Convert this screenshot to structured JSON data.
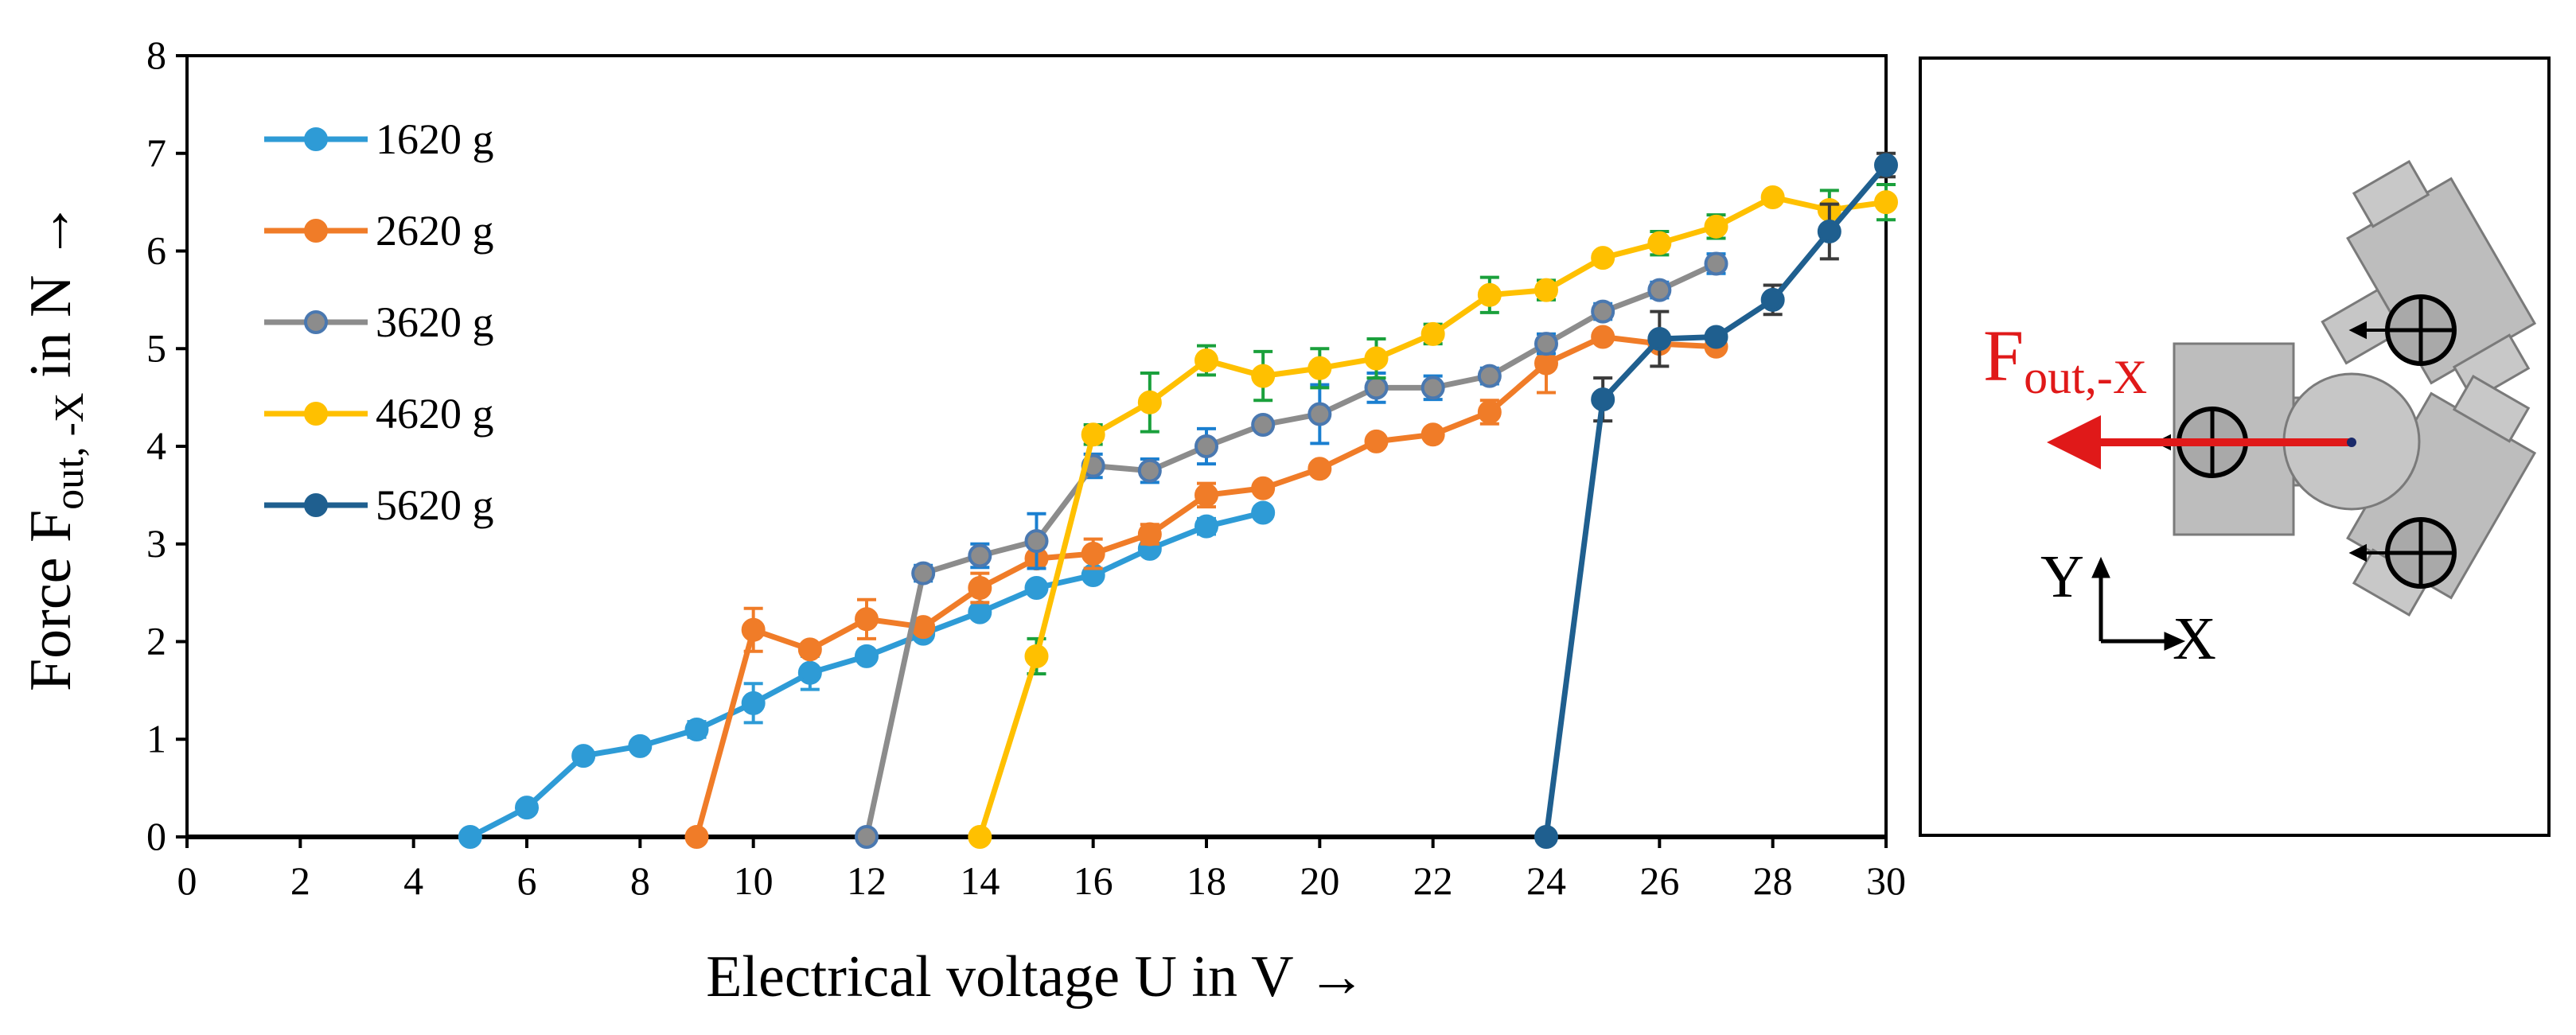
{
  "chart_data": {
    "type": "line",
    "xlabel": "Electrical voltage U in V →",
    "ylabel_parts": {
      "main": "Force F",
      "sub": "out, -X",
      "tail": " in N →"
    },
    "xlim": [
      0,
      30
    ],
    "ylim": [
      0,
      8
    ],
    "xticks": [
      0,
      2,
      4,
      6,
      8,
      10,
      12,
      14,
      16,
      18,
      20,
      22,
      24,
      26,
      28,
      30
    ],
    "yticks": [
      0,
      1,
      2,
      3,
      4,
      5,
      6,
      7,
      8
    ],
    "grid": false,
    "legend_position": "top-left",
    "series": [
      {
        "name": "1620 g",
        "color": "#2e9bd6",
        "marker_edge": "#2e9bd6",
        "error_color": "#2e9bd6",
        "x": [
          5,
          6,
          7,
          8,
          9,
          10,
          11,
          12,
          13,
          14,
          15,
          16,
          17,
          18,
          19
        ],
        "values": [
          0,
          0.3,
          0.83,
          0.93,
          1.1,
          1.37,
          1.68,
          1.85,
          2.08,
          2.3,
          2.55,
          2.68,
          2.95,
          3.18,
          3.32
        ],
        "errors": [
          0,
          0,
          0,
          0,
          0.08,
          0.2,
          0.17,
          0,
          0.05,
          0,
          0,
          0,
          0,
          0.08,
          0.06
        ]
      },
      {
        "name": "2620 g",
        "color": "#f07c28",
        "marker_edge": "#f07c28",
        "error_color": "#f07c28",
        "x": [
          9,
          10,
          11,
          12,
          13,
          14,
          15,
          16,
          17,
          18,
          19,
          20,
          21,
          22,
          23,
          24,
          25,
          26,
          27
        ],
        "values": [
          0,
          2.12,
          1.92,
          2.23,
          2.15,
          2.55,
          2.85,
          2.9,
          3.1,
          3.5,
          3.57,
          3.77,
          4.05,
          4.12,
          4.35,
          4.85,
          5.12,
          5.05,
          5.02
        ],
        "errors": [
          0,
          0.22,
          0,
          0.2,
          0,
          0.15,
          0,
          0.15,
          0.1,
          0.12,
          0,
          0,
          0,
          0,
          0.12,
          0.3,
          0,
          0,
          0
        ]
      },
      {
        "name": "3620 g",
        "color": "#8c8c8c",
        "marker_edge": "#4a78b0",
        "error_color": "#1a7fd0",
        "x": [
          12,
          13,
          14,
          15,
          16,
          17,
          18,
          19,
          20,
          21,
          22,
          23,
          24,
          25,
          26,
          27
        ],
        "values": [
          0,
          2.7,
          2.88,
          3.03,
          3.8,
          3.75,
          4.0,
          4.22,
          4.33,
          4.6,
          4.6,
          4.72,
          5.05,
          5.38,
          5.6,
          5.87
        ],
        "errors": [
          0,
          0.08,
          0.12,
          0.28,
          0.12,
          0.12,
          0.18,
          0.05,
          0.3,
          0.15,
          0.12,
          0.08,
          0.1,
          0.08,
          0.08,
          0.1
        ]
      },
      {
        "name": "4620 g",
        "color": "#ffc000",
        "marker_edge": "#ffc000",
        "error_color": "#1aa03c",
        "x": [
          14,
          15,
          16,
          17,
          18,
          19,
          20,
          21,
          22,
          23,
          24,
          25,
          26,
          27,
          28,
          29,
          30
        ],
        "values": [
          0,
          1.85,
          4.12,
          4.45,
          4.88,
          4.72,
          4.8,
          4.9,
          5.15,
          5.55,
          5.6,
          5.93,
          6.08,
          6.25,
          6.55,
          6.42,
          6.5
        ],
        "errors": [
          0,
          0.18,
          0.1,
          0.3,
          0.15,
          0.25,
          0.2,
          0.2,
          0.1,
          0.18,
          0.1,
          0,
          0.12,
          0.12,
          0.05,
          0.2,
          0.18
        ]
      },
      {
        "name": "5620 g",
        "color": "#1f5f8f",
        "marker_edge": "#1f5f8f",
        "error_color": "#3a3a3a",
        "x": [
          24,
          25,
          26,
          27,
          28,
          29,
          30
        ],
        "values": [
          0,
          4.48,
          5.1,
          5.12,
          5.5,
          6.2,
          6.88
        ],
        "errors": [
          0,
          0.22,
          0.28,
          0.05,
          0.15,
          0.28,
          0.12
        ]
      }
    ]
  },
  "diagram": {
    "force_label": {
      "main": "F",
      "sub": "out,-X"
    },
    "axis_y_label": "Y",
    "axis_x_label": "X",
    "force_color": "#e01919"
  }
}
